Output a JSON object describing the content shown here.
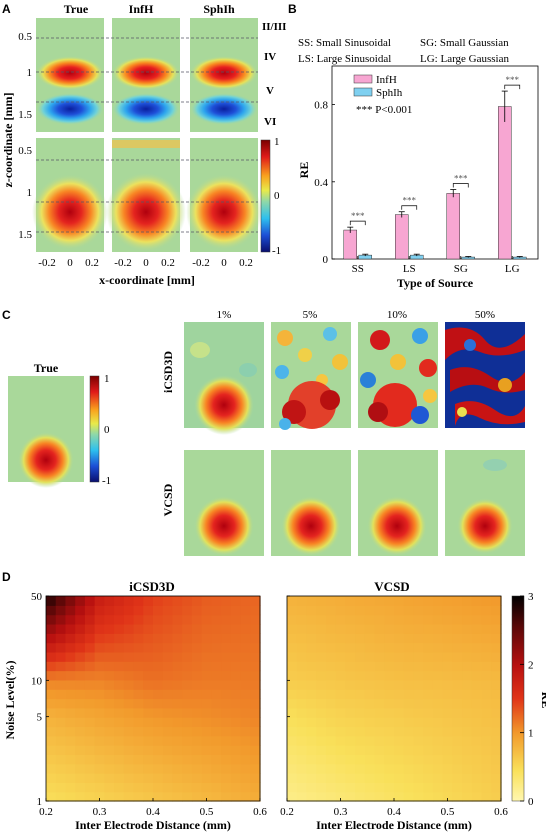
{
  "panel_letters": [
    "A",
    "B",
    "C",
    "D"
  ],
  "panelA": {
    "columns": [
      "True",
      "InfH",
      "SphIh"
    ],
    "layers": [
      "II/III",
      "IV",
      "V",
      "VI"
    ],
    "ylabel": "z-coordinate [mm]",
    "xlabel": "x-coordinate [mm]",
    "yticks_top": [
      "0.5",
      "1",
      "1.5"
    ],
    "yticks_bottom": [
      "0.5",
      "1",
      "1.5"
    ],
    "xticks": [
      "-0.2",
      "0",
      "0.2"
    ],
    "colorbar_ticks": [
      "1",
      "0",
      "-1"
    ]
  },
  "panelC": {
    "true_title": "True",
    "noise_levels": [
      "1%",
      "5%",
      "10%",
      "50%"
    ],
    "rows": [
      "iCSD3D",
      "VCSD"
    ],
    "colorbar_ticks": [
      "1",
      "0",
      "-1"
    ]
  },
  "chart_data": [
    {
      "type": "bar",
      "panel": "B",
      "legend_text": [
        "SS: Small Sinusoidal",
        "SG: Small Gaussian",
        "LS: Large Sinusoidal",
        "LG: Large Gaussian"
      ],
      "categories": [
        "SS",
        "LS",
        "SG",
        "LG"
      ],
      "series": [
        {
          "name": "InfH",
          "values": [
            0.15,
            0.23,
            0.34,
            0.79
          ],
          "errors": [
            0.015,
            0.015,
            0.02,
            0.08
          ],
          "color": "#f7a6d2"
        },
        {
          "name": "SphIh",
          "values": [
            0.02,
            0.02,
            0.01,
            0.01
          ],
          "errors": [
            0.005,
            0.005,
            0.003,
            0.003
          ],
          "color": "#7fd0f0"
        }
      ],
      "significance": "***",
      "sig_note": "*** P<0.001",
      "xlabel": "Type of Source",
      "ylabel": "RE",
      "yticks": [
        0,
        0.4,
        0.8
      ],
      "ylim": [
        0,
        1.0
      ]
    },
    {
      "type": "heatmap",
      "panel": "D",
      "title": "iCSD3D",
      "x": [
        0.2,
        0.3,
        0.4,
        0.5,
        0.6
      ],
      "y": [
        1,
        5,
        10,
        50
      ],
      "xlabel": "Inter Electrode Distance (mm)",
      "ylabel": "Noise Level(%)",
      "xtick_labels": [
        "0.2",
        "0.3",
        "0.4",
        "0.5",
        "0.6"
      ],
      "ytick_labels": [
        "1",
        "5",
        "10",
        "50"
      ],
      "yscale": "log",
      "zrange": [
        0,
        3
      ],
      "values": [
        [
          0.45,
          0.55,
          0.65,
          0.75,
          0.85
        ],
        [
          0.8,
          0.9,
          1.0,
          1.05,
          1.1
        ],
        [
          1.1,
          1.1,
          1.2,
          1.15,
          1.15
        ],
        [
          2.9,
          1.8,
          1.45,
          1.3,
          1.25
        ]
      ]
    },
    {
      "type": "heatmap",
      "panel": "D",
      "title": "VCSD",
      "x": [
        0.2,
        0.3,
        0.4,
        0.5,
        0.6
      ],
      "y": [
        1,
        5,
        10,
        50
      ],
      "xlabel": "Inter Electrode Distance (mm)",
      "xtick_labels": [
        "0.2",
        "0.3",
        "0.4",
        "0.5",
        "0.6"
      ],
      "ytick_labels": [
        "1",
        "5",
        "10",
        "50"
      ],
      "yscale": "log",
      "zrange": [
        0,
        3
      ],
      "values": [
        [
          0.2,
          0.3,
          0.4,
          0.5,
          0.6
        ],
        [
          0.45,
          0.55,
          0.6,
          0.65,
          0.7
        ],
        [
          0.6,
          0.65,
          0.7,
          0.72,
          0.75
        ],
        [
          0.8,
          0.85,
          0.9,
          0.95,
          1.0
        ]
      ],
      "colorbar_label": "RE",
      "colorbar_ticks": [
        "0",
        "1",
        "2",
        "3"
      ]
    }
  ]
}
